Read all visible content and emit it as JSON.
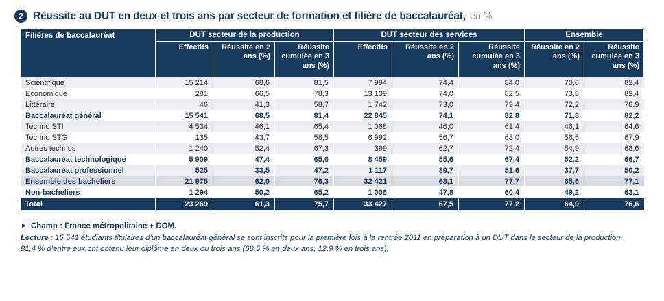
{
  "title": {
    "badge": "2",
    "main": "Réussite au DUT en deux et trois ans par secteur de formation et filière de baccalauréat,",
    "suffix": "en %."
  },
  "table": {
    "corner_header": "Filières de baccalauréat",
    "groups": [
      {
        "label": "DUT secteur de la production",
        "cols": [
          "Effectifs",
          "Réussite en 2 ans (%)",
          "Réussite cumulée en 3 ans (%)"
        ]
      },
      {
        "label": "DUT secteur des services",
        "cols": [
          "Effectifs",
          "Réussite en 2 ans (%)",
          "Réussite cumulée en 3 ans (%)"
        ]
      },
      {
        "label": "Ensemble",
        "cols": [
          "Réussite en 2 ans (%)",
          "Réussite cumulée en 3 ans (%)"
        ]
      }
    ],
    "rows": [
      {
        "label": "Scientifique",
        "bold": false,
        "style": "stripe",
        "values": [
          "15 214",
          "68,6",
          "81,5",
          "7 994",
          "74,4",
          "84,0",
          "70,6",
          "82,4"
        ]
      },
      {
        "label": "Economique",
        "bold": false,
        "style": "plain",
        "values": [
          "281",
          "66,5",
          "78,3",
          "13 109",
          "74,0",
          "82,5",
          "73,8",
          "82,4"
        ]
      },
      {
        "label": "Littéraire",
        "bold": false,
        "style": "stripe",
        "values": [
          "46",
          "41,3",
          "58,7",
          "1 742",
          "73,0",
          "79,4",
          "72,2",
          "78,9"
        ]
      },
      {
        "label": "Baccalauréat général",
        "bold": true,
        "style": "plain",
        "values": [
          "15 541",
          "68,5",
          "81,4",
          "22 845",
          "74,1",
          "82,8",
          "71,8",
          "82,2"
        ]
      },
      {
        "label": "Techno STI",
        "bold": false,
        "style": "stripe",
        "values": [
          "4 534",
          "46,1",
          "65,4",
          "1 068",
          "46,0",
          "61,4",
          "46,1",
          "64,6"
        ]
      },
      {
        "label": "Techno STG",
        "bold": false,
        "style": "plain",
        "values": [
          "135",
          "43,7",
          "58,5",
          "6 992",
          "56,7",
          "68,0",
          "56,5",
          "67,9"
        ]
      },
      {
        "label": "Autres technos",
        "bold": false,
        "style": "stripe",
        "values": [
          "1 240",
          "52,4",
          "67,3",
          "399",
          "62,7",
          "72,4",
          "54,9",
          "68,6"
        ]
      },
      {
        "label": "Baccalauréat technologique",
        "bold": true,
        "style": "plain",
        "values": [
          "5 909",
          "47,4",
          "65,6",
          "8 459",
          "55,6",
          "67,4",
          "52,2",
          "66,7"
        ]
      },
      {
        "label": "Baccalauréat professionnel",
        "bold": true,
        "style": "stripe",
        "values": [
          "525",
          "33,5",
          "47,2",
          "1 117",
          "39,7",
          "51,6",
          "37,7",
          "50,2"
        ]
      },
      {
        "label": "Ensemble des bacheliers",
        "bold": true,
        "style": "dark",
        "values": [
          "21 975",
          "62,0",
          "76,3",
          "32 421",
          "68,1",
          "77,7",
          "65,6",
          "77,1"
        ]
      },
      {
        "label": "Non-bacheliers",
        "bold": true,
        "style": "plain",
        "values": [
          "1 294",
          "50,2",
          "65,2",
          "1 006",
          "47,8",
          "60,4",
          "49,2",
          "63,1"
        ]
      },
      {
        "label": "Total",
        "bold": true,
        "style": "total",
        "values": [
          "23 269",
          "61,3",
          "75,7",
          "33 427",
          "67,5",
          "77,2",
          "64,9",
          "76,6"
        ]
      }
    ]
  },
  "footer": {
    "champ_marker": "►",
    "champ": "Champ : France métropolitaine + DOM.",
    "lecture_label": "Lecture",
    "lecture_line1": " : 15 541 étudiants titulaires d’un baccalauréat général se sont inscrits pour la première fois à la rentrée 2011 en préparation à un DUT dans le secteur de la production.",
    "lecture_line2": "81,4 % d’entre eux ont obtenu leur diplôme en deux ou trois ans (68,5 % en deux ans, 12,9 % en trois ans)."
  },
  "colors": {
    "navy": "#16395e",
    "stripe": "#efeff3",
    "stripe_dark": "#d9dae2",
    "suffix_gray": "#8f8f8f"
  }
}
